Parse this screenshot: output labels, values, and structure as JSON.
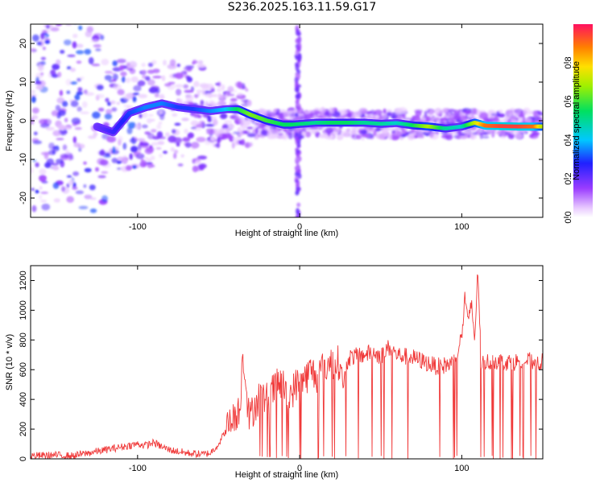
{
  "title": "S236.2025.163.11.59.G17",
  "chart_data": [
    {
      "type": "heatmap",
      "title": "S236.2025.163.11.59.G17",
      "xlabel": "Height of straight line (km)",
      "ylabel": "Frequency (Hz)",
      "xlim": [
        -166,
        150
      ],
      "ylim": [
        -25,
        25
      ],
      "x_ticks": [
        -100,
        0,
        100
      ],
      "y_ticks": [
        -20,
        -10,
        0,
        10,
        20
      ],
      "colorbar": {
        "label": "Normalized spectral amplitude",
        "range": [
          0,
          1
        ],
        "ticks": [
          0.0,
          0.2,
          0.4,
          0.6,
          0.8
        ]
      },
      "ridge": {
        "x": [
          -125,
          -115,
          -105,
          -95,
          -85,
          -75,
          -65,
          -55,
          -45,
          -38,
          -30,
          -20,
          -10,
          -5,
          10,
          20,
          30,
          40,
          50,
          60,
          70,
          80,
          90,
          100,
          108,
          115,
          125,
          135,
          145,
          150
        ],
        "y": [
          -1.5,
          -3,
          2,
          3.5,
          4.5,
          3.5,
          3,
          2.5,
          3,
          3,
          1.5,
          0,
          -1,
          -1,
          -0.5,
          -0.5,
          -0.5,
          -0.5,
          -0.8,
          -0.6,
          -1.2,
          -1.5,
          -2,
          -1.5,
          -0.5,
          -1.3,
          -1.4,
          -1.5,
          -1.5,
          -1.5
        ],
        "amplitude": [
          0.2,
          0.25,
          0.3,
          0.35,
          0.35,
          0.3,
          0.3,
          0.35,
          0.4,
          0.55,
          0.65,
          0.6,
          0.55,
          0.55,
          0.5,
          0.55,
          0.55,
          0.5,
          0.5,
          0.45,
          0.55,
          0.7,
          0.5,
          0.45,
          0.7,
          0.9,
          0.95,
          0.95,
          0.9,
          0.7
        ]
      }
    },
    {
      "type": "line",
      "xlabel": "Height of straight line (km)",
      "ylabel": "SNR (10 * v/v)",
      "xlim": [
        -166,
        150
      ],
      "ylim": [
        0,
        1300
      ],
      "x_ticks": [
        -100,
        0,
        100
      ],
      "y_ticks": [
        0,
        200,
        400,
        600,
        800,
        1000,
        1200
      ],
      "color": "#f03a3a",
      "series": [
        {
          "x": [
            -166,
            -150,
            -140,
            -130,
            -120,
            -110,
            -100,
            -95,
            -90,
            -85,
            -80,
            -70,
            -60,
            -55,
            -50,
            -45,
            -40,
            -37,
            -35,
            -31,
            -30,
            -28,
            -25,
            -20,
            -15,
            -10,
            -8,
            -5,
            -2,
            0,
            5,
            7,
            10,
            15,
            20,
            25,
            27,
            30,
            40,
            45,
            50,
            55,
            60,
            70,
            80,
            85,
            90,
            95,
            100,
            102,
            104,
            106,
            108,
            110,
            112,
            115,
            120,
            130,
            140,
            150
          ],
          "y": [
            20,
            25,
            20,
            40,
            60,
            80,
            100,
            90,
            110,
            80,
            60,
            40,
            30,
            40,
            100,
            200,
            300,
            330,
            730,
            250,
            300,
            350,
            420,
            400,
            480,
            520,
            380,
            450,
            500,
            520,
            560,
            600,
            550,
            620,
            640,
            650,
            500,
            680,
            700,
            720,
            690,
            750,
            700,
            680,
            640,
            620,
            630,
            650,
            820,
            1100,
            900,
            1050,
            800,
            1280,
            640,
            650,
            660,
            650,
            660,
            650
          ]
        }
      ]
    }
  ]
}
